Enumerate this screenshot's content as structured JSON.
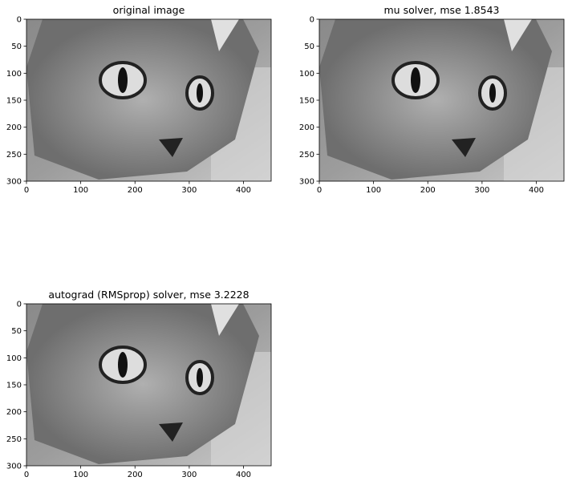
{
  "chart_data": [
    {
      "type": "image",
      "title": "original image",
      "xlim": [
        0,
        451
      ],
      "ylim": [
        300,
        0
      ],
      "xticks": [
        0,
        100,
        200,
        300,
        400
      ],
      "yticks": [
        0,
        50,
        100,
        150,
        200,
        250,
        300
      ]
    },
    {
      "type": "image",
      "title": "mu solver, mse 1.8543",
      "xlim": [
        0,
        451
      ],
      "ylim": [
        300,
        0
      ],
      "xticks": [
        0,
        100,
        200,
        300,
        400
      ],
      "yticks": [
        0,
        50,
        100,
        150,
        200,
        250,
        300
      ]
    },
    {
      "type": "image",
      "title": "autograd (RMSprop) solver, mse 3.2228",
      "xlim": [
        0,
        451
      ],
      "ylim": [
        300,
        0
      ],
      "xticks": [
        0,
        100,
        200,
        300,
        400
      ],
      "yticks": [
        0,
        50,
        100,
        150,
        200,
        250,
        300
      ]
    }
  ]
}
